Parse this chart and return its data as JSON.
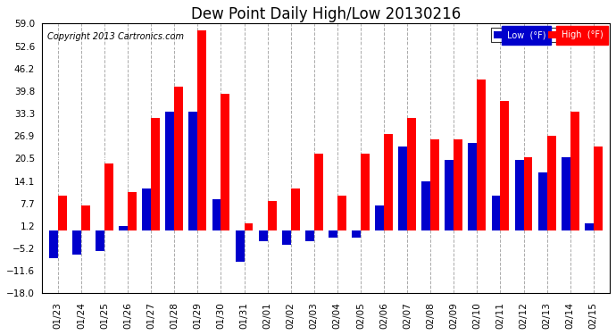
{
  "title": "Dew Point Daily High/Low 20130216",
  "copyright": "Copyright 2013 Cartronics.com",
  "ylim": [
    -18.0,
    59.0
  ],
  "yticks": [
    -18.0,
    -11.6,
    -5.2,
    1.2,
    7.7,
    14.1,
    20.5,
    26.9,
    33.3,
    39.8,
    46.2,
    52.6,
    59.0
  ],
  "dates": [
    "01/23",
    "01/24",
    "01/25",
    "01/26",
    "01/27",
    "01/28",
    "01/29",
    "01/30",
    "01/31",
    "02/01",
    "02/02",
    "02/03",
    "02/04",
    "02/05",
    "02/06",
    "02/07",
    "02/08",
    "02/09",
    "02/10",
    "02/11",
    "02/12",
    "02/13",
    "02/14",
    "02/15"
  ],
  "high": [
    10.0,
    7.0,
    19.0,
    11.0,
    32.0,
    41.0,
    57.0,
    39.0,
    2.0,
    8.5,
    12.0,
    22.0,
    10.0,
    22.0,
    27.5,
    32.0,
    26.0,
    26.0,
    43.0,
    37.0,
    21.0,
    27.0,
    34.0,
    24.0
  ],
  "low": [
    -8.0,
    -7.0,
    -6.0,
    1.2,
    12.0,
    34.0,
    34.0,
    9.0,
    -9.0,
    -3.0,
    -4.0,
    -3.0,
    -2.0,
    -2.0,
    7.0,
    24.0,
    14.0,
    20.0,
    25.0,
    10.0,
    20.0,
    16.5,
    21.0,
    2.0
  ],
  "high_color": "#FF0000",
  "low_color": "#0000CC",
  "bg_color": "#FFFFFF",
  "grid_color": "#AAAAAA",
  "bar_width": 0.38,
  "title_fontsize": 12,
  "tick_fontsize": 7.5,
  "copyright_fontsize": 7
}
